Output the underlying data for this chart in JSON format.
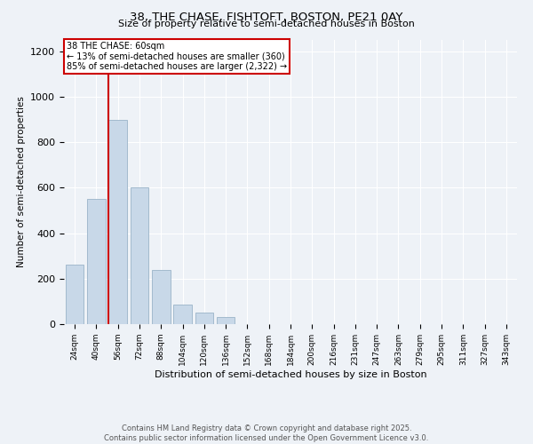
{
  "title": "38, THE CHASE, FISHTOFT, BOSTON, PE21 0AY",
  "subtitle": "Size of property relative to semi-detached houses in Boston",
  "xlabel": "Distribution of semi-detached houses by size in Boston",
  "ylabel": "Number of semi-detached properties",
  "bin_labels": [
    "24sqm",
    "40sqm",
    "56sqm",
    "72sqm",
    "88sqm",
    "104sqm",
    "120sqm",
    "136sqm",
    "152sqm",
    "168sqm",
    "184sqm",
    "200sqm",
    "216sqm",
    "231sqm",
    "247sqm",
    "263sqm",
    "279sqm",
    "295sqm",
    "311sqm",
    "327sqm",
    "343sqm"
  ],
  "bin_values": [
    260,
    550,
    900,
    600,
    240,
    85,
    50,
    30,
    0,
    0,
    0,
    0,
    0,
    0,
    0,
    0,
    0,
    0,
    0,
    0,
    0
  ],
  "red_line_x": 2.0,
  "annotation_title": "38 THE CHASE: 60sqm",
  "annotation_line1": "← 13% of semi-detached houses are smaller (360)",
  "annotation_line2": "85% of semi-detached houses are larger (2,322) →",
  "bar_color": "#c8d8e8",
  "bar_edge_color": "#9ab4c8",
  "redline_color": "#cc0000",
  "annotation_box_edgecolor": "#cc0000",
  "annotation_box_facecolor": "#ffffff",
  "background_color": "#eef2f7",
  "grid_color": "#ffffff",
  "footer_line1": "Contains HM Land Registry data © Crown copyright and database right 2025.",
  "footer_line2": "Contains public sector information licensed under the Open Government Licence v3.0.",
  "ylim": [
    0,
    1250
  ],
  "yticks": [
    0,
    200,
    400,
    600,
    800,
    1000,
    1200
  ]
}
